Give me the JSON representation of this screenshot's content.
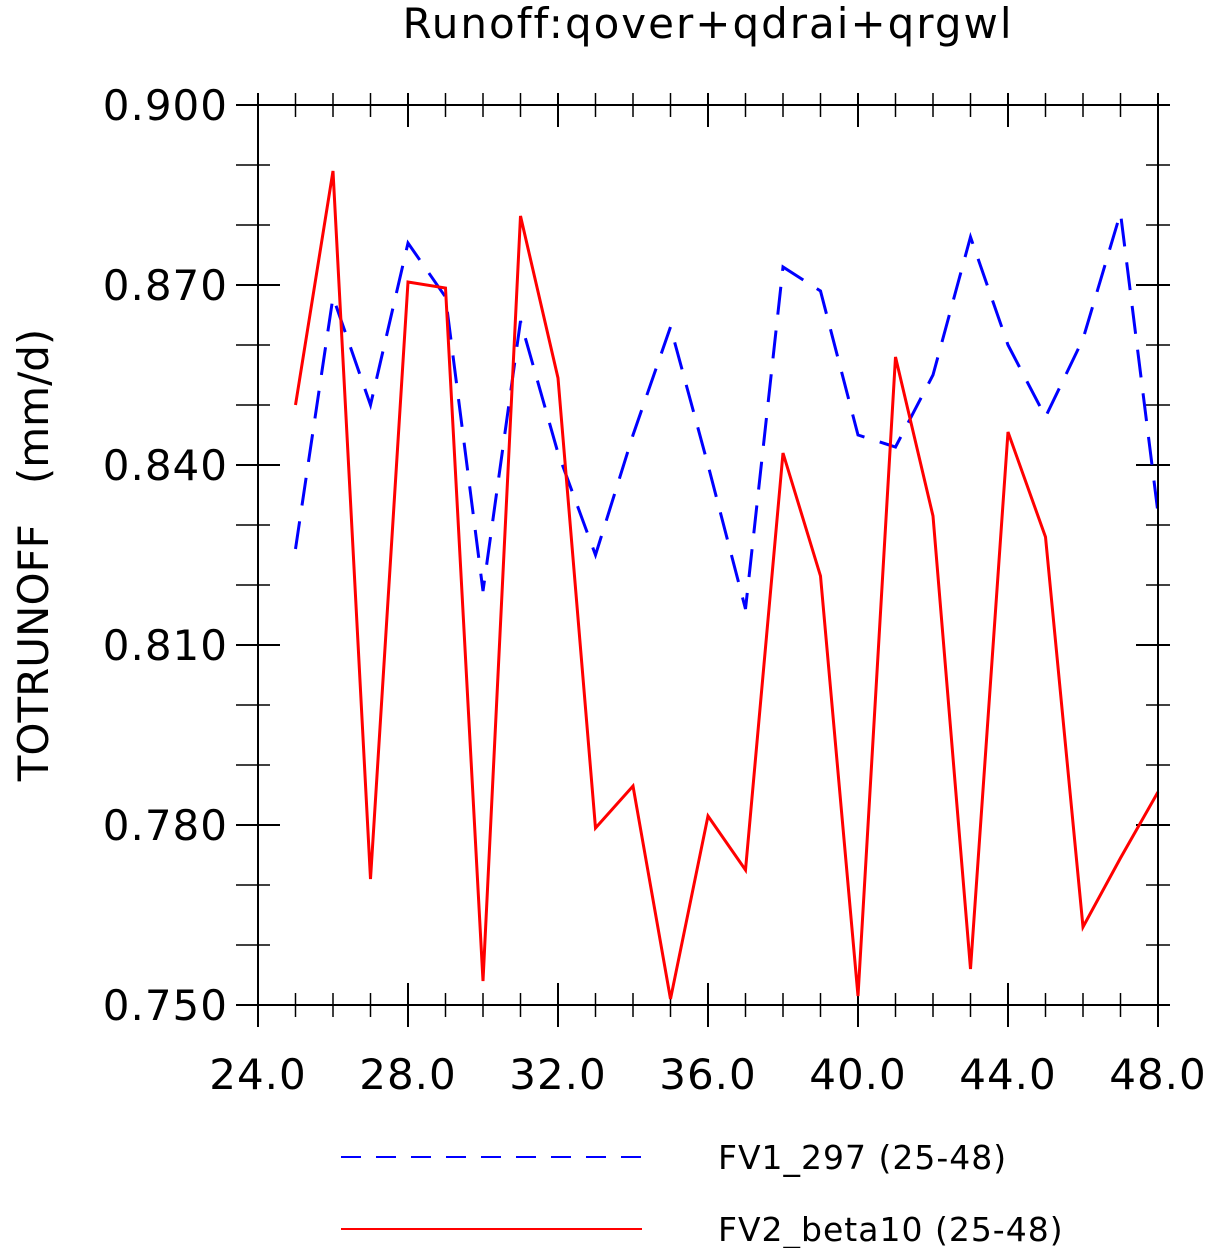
{
  "chart_data": {
    "type": "line",
    "title": "Runoff:qover+qdrai+qrgwl",
    "xlabel": "",
    "ylabel": "TOTRUNOFF   (mm/d)",
    "xlim": [
      24,
      48
    ],
    "ylim": [
      0.75,
      0.9
    ],
    "xticks": [
      24,
      28,
      32,
      36,
      40,
      44,
      48
    ],
    "xtick_labels": [
      "24.0",
      "28.0",
      "32.0",
      "36.0",
      "40.0",
      "44.0",
      "48.0"
    ],
    "yticks": [
      0.75,
      0.78,
      0.81,
      0.84,
      0.87,
      0.9
    ],
    "ytick_labels": [
      "0.750",
      "0.780",
      "0.810",
      "0.840",
      "0.870",
      "0.900"
    ],
    "grid": false,
    "legend_position": "bottom",
    "x": [
      25,
      26,
      27,
      28,
      29,
      30,
      31,
      32,
      33,
      34,
      35,
      36,
      37,
      38,
      39,
      40,
      41,
      42,
      43,
      44,
      45,
      46,
      47,
      48
    ],
    "series": [
      {
        "name": "FV1_297 (25-48)",
        "color": "#0000ff",
        "dash": "dashed",
        "values": [
          0.826,
          0.868,
          0.85,
          0.877,
          0.868,
          0.819,
          0.864,
          0.842,
          0.825,
          0.845,
          0.863,
          0.84,
          0.816,
          0.873,
          0.869,
          0.845,
          0.843,
          0.855,
          0.878,
          0.86,
          0.848,
          0.861,
          0.882,
          0.832
        ]
      },
      {
        "name": "FV2_beta10 (25-48)",
        "color": "#ff0000",
        "dash": "solid",
        "values": [
          0.85,
          0.889,
          0.771,
          0.8705,
          0.8695,
          0.754,
          0.8815,
          0.8545,
          0.7795,
          0.7865,
          0.751,
          0.7815,
          0.7725,
          0.842,
          0.8215,
          0.7515,
          0.858,
          0.8315,
          0.756,
          0.8455,
          0.828,
          0.763,
          0.7745,
          0.7855
        ]
      }
    ]
  }
}
